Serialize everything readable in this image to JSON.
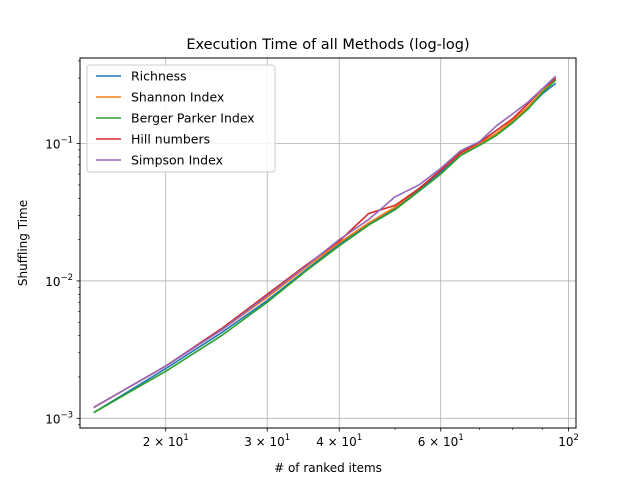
{
  "chart_data": {
    "type": "line",
    "title": "Execution Time of all Methods (log-log)",
    "xlabel": "# of ranked items",
    "ylabel": "Shuffling Time",
    "xscale": "log",
    "yscale": "log",
    "xlim": [
      14.2,
      103
    ],
    "ylim": [
      0.00085,
      0.42
    ],
    "grid": "major gridlines on both axes",
    "legend_position": "upper-left",
    "x_major_ticks": [
      {
        "value": 20,
        "base": "2 × 10",
        "exp": "1"
      },
      {
        "value": 30,
        "base": "3 × 10",
        "exp": "1"
      },
      {
        "value": 40,
        "base": "4 × 10",
        "exp": "1"
      },
      {
        "value": 60,
        "base": "6 × 10",
        "exp": "1"
      },
      {
        "value": 100,
        "base": "10",
        "exp": "2"
      }
    ],
    "y_major_ticks": [
      {
        "value": 0.001,
        "base": "10",
        "exp": "−3"
      },
      {
        "value": 0.01,
        "base": "10",
        "exp": "−2"
      },
      {
        "value": 0.1,
        "base": "10",
        "exp": "−1"
      }
    ],
    "x": [
      15,
      20,
      25,
      30,
      35,
      40,
      45,
      50,
      55,
      60,
      65,
      70,
      75,
      80,
      85,
      90,
      95
    ],
    "series": [
      {
        "name": "Richness",
        "color": "#1f77b4",
        "values": [
          0.0011,
          0.0023,
          0.0042,
          0.0072,
          0.012,
          0.0185,
          0.026,
          0.034,
          0.046,
          0.062,
          0.084,
          0.098,
          0.117,
          0.145,
          0.18,
          0.23,
          0.275
        ]
      },
      {
        "name": "Shannon Index",
        "color": "#ff7f0e",
        "values": [
          0.0012,
          0.0024,
          0.0044,
          0.0076,
          0.0125,
          0.019,
          0.0265,
          0.0345,
          0.047,
          0.064,
          0.085,
          0.1,
          0.119,
          0.148,
          0.185,
          0.24,
          0.295
        ]
      },
      {
        "name": "Berger Parker Index",
        "color": "#2ca02c",
        "values": [
          0.0011,
          0.0022,
          0.004,
          0.007,
          0.0118,
          0.018,
          0.0255,
          0.033,
          0.045,
          0.06,
          0.082,
          0.097,
          0.115,
          0.142,
          0.178,
          0.235,
          0.29
        ]
      },
      {
        "name": "Hill numbers",
        "color": "#d62728",
        "values": [
          0.0012,
          0.0024,
          0.0045,
          0.008,
          0.013,
          0.0195,
          0.031,
          0.0355,
          0.047,
          0.064,
          0.086,
          0.102,
          0.125,
          0.152,
          0.195,
          0.25,
          0.3
        ]
      },
      {
        "name": "Simpson Index",
        "color": "#9467bd",
        "values": [
          0.0012,
          0.0024,
          0.0044,
          0.0078,
          0.0128,
          0.02,
          0.028,
          0.041,
          0.05,
          0.066,
          0.089,
          0.103,
          0.135,
          0.165,
          0.2,
          0.25,
          0.31
        ]
      }
    ]
  }
}
